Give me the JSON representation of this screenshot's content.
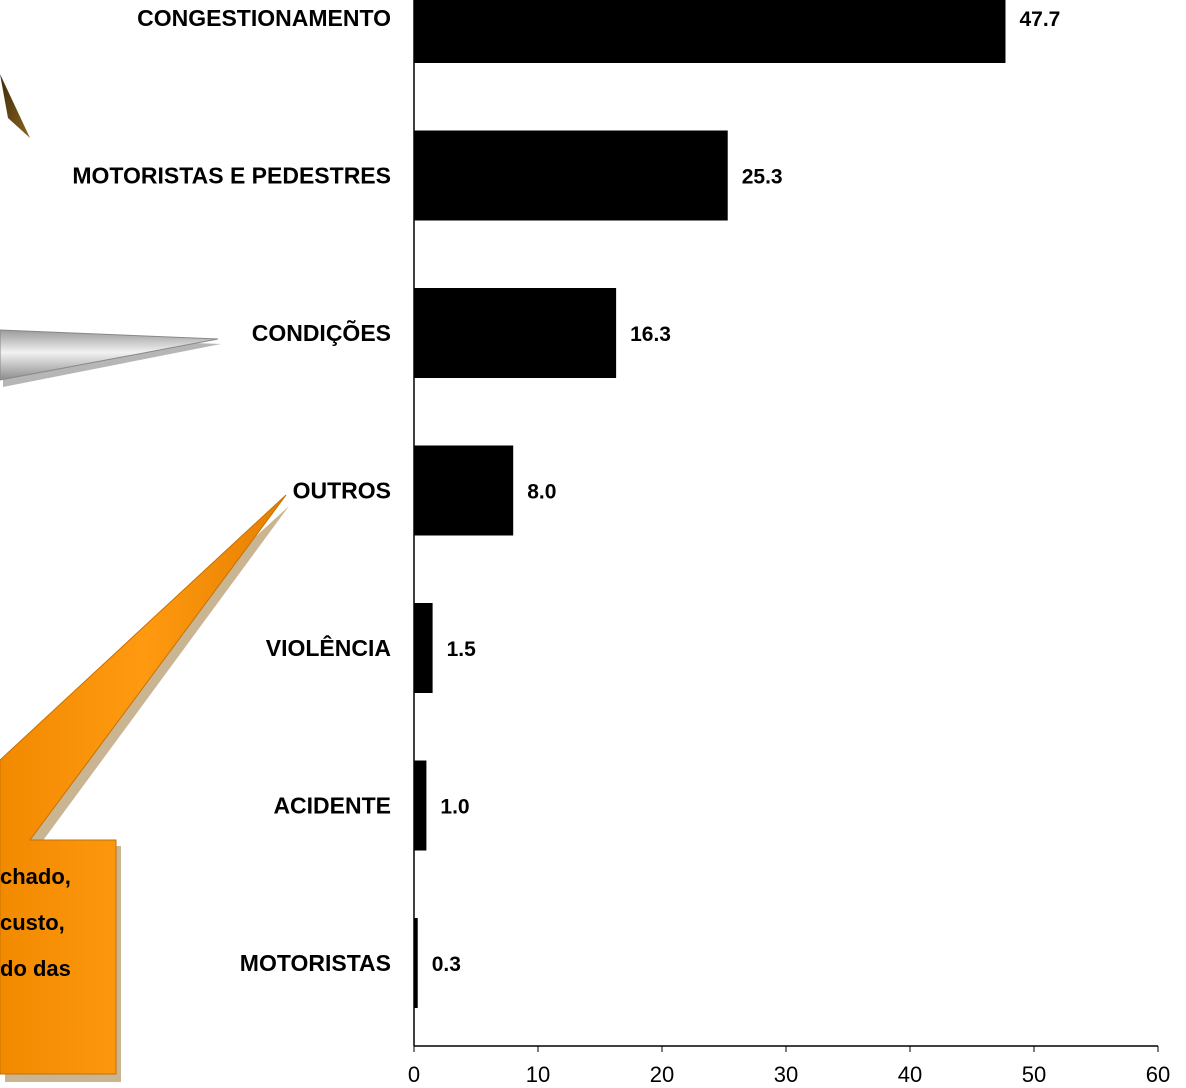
{
  "chart_data": {
    "type": "bar",
    "orientation": "horizontal",
    "categories": [
      "CONGESTIONAMENTO",
      "MOTORISTAS E PEDESTRES",
      "CONDIÇÕES",
      "OUTROS",
      "VIOLÊNCIA",
      "ACIDENTE",
      "MOTORISTAS"
    ],
    "values": [
      47.7,
      25.3,
      16.3,
      8.0,
      1.5,
      1.0,
      0.3
    ],
    "value_labels": [
      "47.7",
      "25.3",
      "16.3",
      "8.0",
      "1.5",
      "1.0",
      "0.3"
    ],
    "xlim": [
      0,
      60
    ],
    "xticks": [
      0,
      10,
      20,
      30,
      40,
      50,
      60
    ],
    "xtick_labels": [
      "0",
      "10",
      "20",
      "30",
      "40",
      "50",
      "60"
    ],
    "bar_color": "#000000",
    "grid": false,
    "title": "",
    "xlabel": "",
    "ylabel": ""
  },
  "callouts": {
    "orange_text_lines": [
      "chado,",
      "custo,",
      "do das"
    ],
    "colors": {
      "orange": "#FF9400",
      "gray": "#C8C8C8",
      "brown": "#6B4A10"
    }
  }
}
